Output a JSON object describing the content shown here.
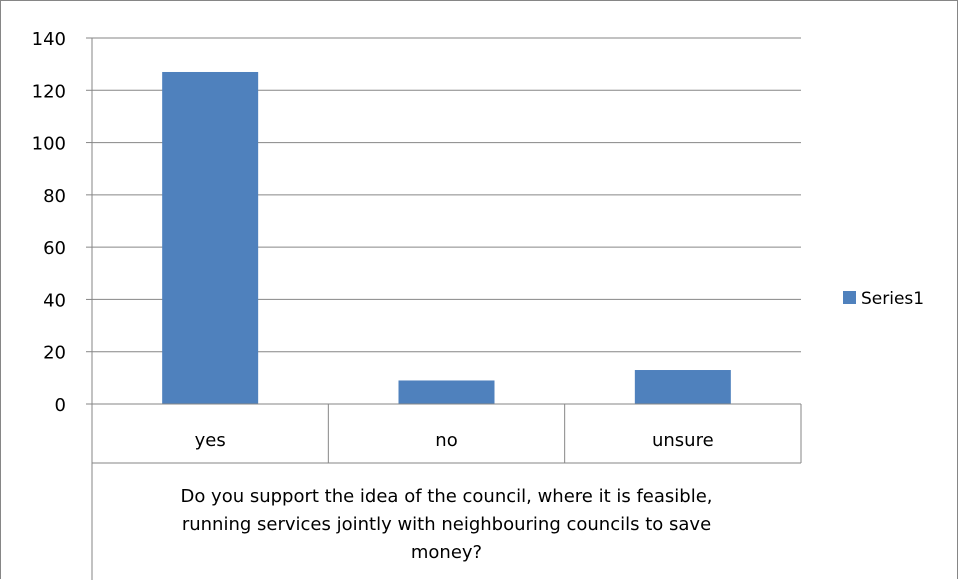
{
  "chart_data": {
    "type": "bar",
    "categories": [
      "yes",
      "no",
      "unsure"
    ],
    "series": [
      {
        "name": "Series1",
        "values": [
          127,
          9,
          13
        ]
      }
    ],
    "xlabel": [
      "Do you support the idea of the council, where it is feasible,",
      "running services jointly with neighbouring councils to save",
      "money?"
    ],
    "ylabel": "",
    "ylim": [
      0,
      140
    ],
    "yticks": [
      0,
      20,
      40,
      60,
      80,
      100,
      120,
      140
    ],
    "grid": true,
    "legend": "right",
    "bar_color": "#4F81BD"
  }
}
